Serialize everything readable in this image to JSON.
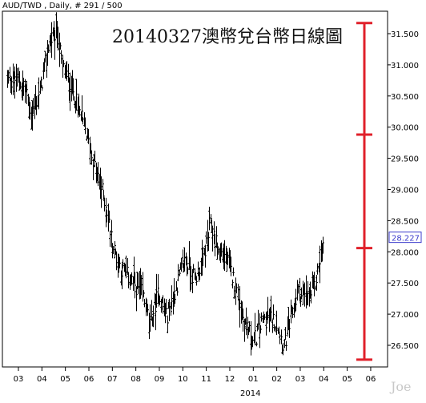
{
  "header": {
    "label": "AUD/TWD , Daily, # 291 / 500"
  },
  "watermark": "Joe",
  "colors": {
    "accent": "#e0202a",
    "price_box": "#3c3ccc",
    "bars": "#000000"
  },
  "chart_data": {
    "type": "ohlc",
    "title": "20140327澳幣兌台幣日線圖",
    "ylim": [
      26.2,
      31.8
    ],
    "y_ticks": [
      "31.500",
      "31.000",
      "30.500",
      "30.000",
      "29.500",
      "29.000",
      "28.500",
      "28.000",
      "27.500",
      "27.000",
      "26.500"
    ],
    "x_ticks": [
      "03",
      "04",
      "05",
      "06",
      "07",
      "08",
      "09",
      "10",
      "11",
      "12",
      "01",
      "02",
      "03",
      "04",
      "05",
      "06"
    ],
    "x_year_label": "2014",
    "last_price": "28.227",
    "grid": false,
    "annotation": {
      "type": "measure-bracket",
      "color": "#e0202a",
      "levels": [
        31.67,
        29.88,
        28.06,
        26.27
      ]
    },
    "series": [
      {
        "anchors": [
          {
            "m": 0,
            "v": 30.75
          },
          {
            "m": 0.3,
            "v": 30.6
          },
          {
            "m": 0.55,
            "v": 30.2
          },
          {
            "m": 0.9,
            "v": 30.55
          },
          {
            "m": 1.3,
            "v": 31.35
          },
          {
            "m": 1.65,
            "v": 31.55
          },
          {
            "m": 1.85,
            "v": 31.0
          },
          {
            "m": 2.3,
            "v": 30.6
          },
          {
            "m": 2.8,
            "v": 30.0
          },
          {
            "m": 3.3,
            "v": 29.3
          },
          {
            "m": 3.7,
            "v": 28.8
          },
          {
            "m": 4.0,
            "v": 28.1
          },
          {
            "m": 4.4,
            "v": 27.7
          },
          {
            "m": 4.8,
            "v": 27.55
          },
          {
            "m": 5.3,
            "v": 27.3
          },
          {
            "m": 5.6,
            "v": 26.85
          },
          {
            "m": 5.95,
            "v": 27.35
          },
          {
            "m": 6.3,
            "v": 26.95
          },
          {
            "m": 6.6,
            "v": 27.3
          },
          {
            "m": 7.1,
            "v": 27.9
          },
          {
            "m": 7.5,
            "v": 27.55
          },
          {
            "m": 7.8,
            "v": 27.8
          },
          {
            "m": 8.2,
            "v": 28.45
          },
          {
            "m": 8.5,
            "v": 28.0
          },
          {
            "m": 8.8,
            "v": 27.95
          },
          {
            "m": 9.2,
            "v": 27.5
          },
          {
            "m": 9.6,
            "v": 26.9
          },
          {
            "m": 10.0,
            "v": 26.55
          },
          {
            "m": 10.4,
            "v": 26.9
          },
          {
            "m": 10.7,
            "v": 26.95
          },
          {
            "m": 11.0,
            "v": 26.85
          },
          {
            "m": 11.3,
            "v": 26.45
          },
          {
            "m": 11.6,
            "v": 26.9
          },
          {
            "m": 11.9,
            "v": 27.35
          },
          {
            "m": 12.3,
            "v": 27.25
          },
          {
            "m": 12.6,
            "v": 27.4
          },
          {
            "m": 13.0,
            "v": 28.2
          }
        ]
      }
    ]
  }
}
